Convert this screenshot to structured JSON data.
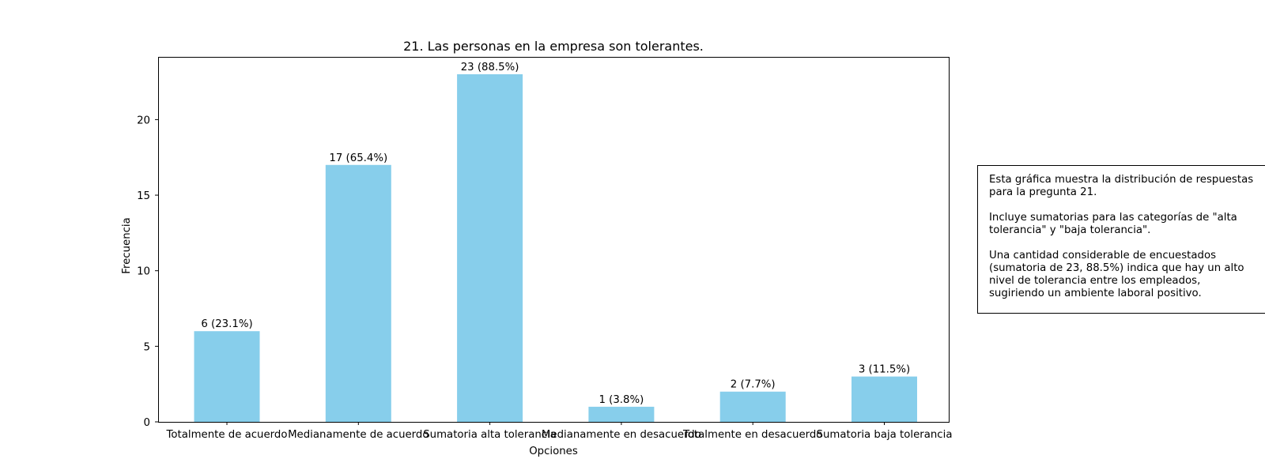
{
  "chart_data": {
    "type": "bar",
    "title": "21. Las personas en la empresa son tolerantes.",
    "xlabel": "Opciones",
    "ylabel": "Frecuencia",
    "categories": [
      "Totalmente de acuerdo",
      "Medianamente de acuerdo",
      "Sumatoria alta tolerancia",
      "Medianamente en desacuerdo",
      "Totalmente en desacuerdo",
      "Sumatoria baja tolerancia"
    ],
    "values": [
      6,
      17,
      23,
      1,
      2,
      3
    ],
    "data_labels": [
      "6 (23.1%)",
      "17 (65.4%)",
      "23 (88.5%)",
      "1 (3.8%)",
      "2 (7.7%)",
      "3 (11.5%)"
    ],
    "yticks": [
      0,
      5,
      10,
      15,
      20
    ],
    "ylim": [
      0,
      24.15
    ],
    "bar_color": "#87ceeb",
    "grid": false
  },
  "annotation": {
    "lines": [
      "Esta gráfica muestra la distribución de respuestas",
      "para la pregunta 21.",
      "",
      "Incluye sumatorias para las categorías de \"alta",
      "tolerancia\" y \"baja tolerancia\".",
      "",
      "Una cantidad considerable de encuestados",
      "(sumatoria de 23, 88.5%) indica que hay un alto",
      "nivel de tolerancia entre los empleados,",
      "sugiriendo un ambiente laboral positivo."
    ]
  }
}
